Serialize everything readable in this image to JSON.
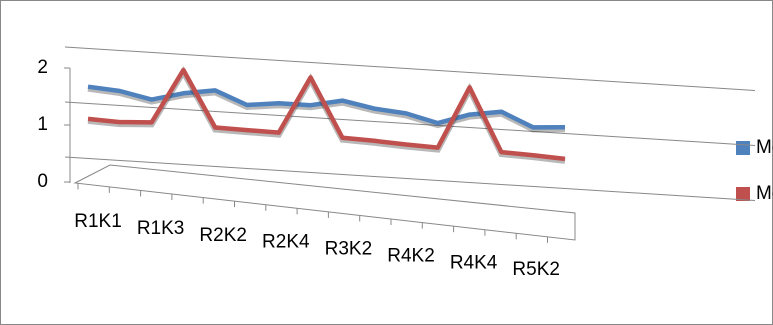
{
  "chart_data": {
    "type": "line",
    "categories": [
      "R1K1",
      null,
      "R1K3",
      null,
      "R2K2",
      null,
      "R2K4",
      null,
      "R3K2",
      null,
      "R4K2",
      null,
      "R4K4",
      null,
      "R5K2",
      null
    ],
    "series": [
      {
        "name": "Mean",
        "color": "#4f81bd",
        "values": [
          1.34,
          1.3,
          1.18,
          1.33,
          1.42,
          1.19,
          1.26,
          1.26,
          1.38,
          1.27,
          1.22,
          1.08,
          1.27,
          1.36,
          1.11,
          1.15
        ]
      },
      {
        "name": "Median",
        "color": "#c0504d",
        "values": [
          0.9,
          0.88,
          0.91,
          1.9,
          0.89,
          0.88,
          0.87,
          1.91,
          0.85,
          0.83,
          0.8,
          0.78,
          1.91,
          0.77,
          0.75,
          0.72
        ]
      }
    ],
    "ylim": [
      0,
      2
    ],
    "yticks": [
      0,
      1,
      2
    ],
    "grid": true,
    "legend": "right"
  }
}
